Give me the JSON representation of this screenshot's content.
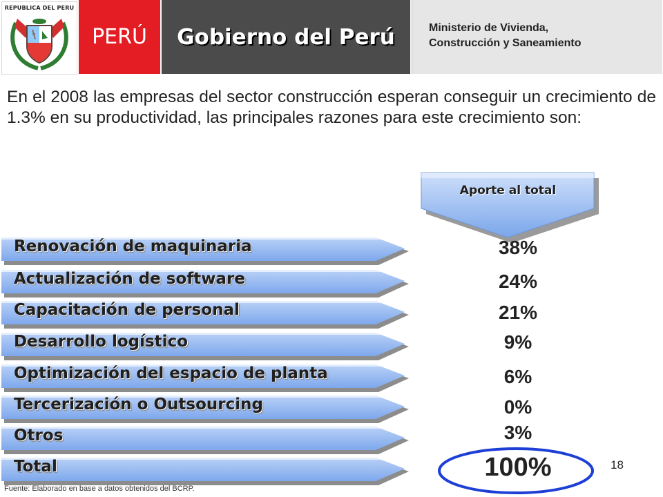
{
  "header": {
    "crest_text": "REPUBLICA DEL PERU",
    "brand_short": "PERÚ",
    "brand_long": "Gobierno del Perú",
    "ministry_line1": "Ministerio de Vivienda,",
    "ministry_line2": "Construcción y Saneamiento"
  },
  "intro": "En el 2008 las empresas del sector construcción esperan conseguir un crecimiento de 1.3% en su productividad, las principales razones para este crecimiento son:",
  "aporte_label": "Aporte al total",
  "rows": [
    {
      "label": "Renovación de maquinaria",
      "value": "38%"
    },
    {
      "label": "Actualización de software",
      "value": "24%"
    },
    {
      "label": "Capacitación de personal",
      "value": "21%"
    },
    {
      "label": "Desarrollo logístico",
      "value": "9%"
    },
    {
      "label": "Optimización del espacio de planta",
      "value": "6%"
    },
    {
      "label": "Tercerización o Outsourcing",
      "value": "0%"
    },
    {
      "label": "Otros",
      "value": "3%"
    }
  ],
  "total": {
    "label": "Total",
    "value": "100%"
  },
  "page_number": "18",
  "source": "Fuente: Elaborado en base a datos obtenidos del BCRP.",
  "colors": {
    "brand_red": "#e41c23",
    "header_gray": "#4b4b4b",
    "arrow_blue": "#8db4ef",
    "ellipse_blue": "#1e3fd6"
  }
}
